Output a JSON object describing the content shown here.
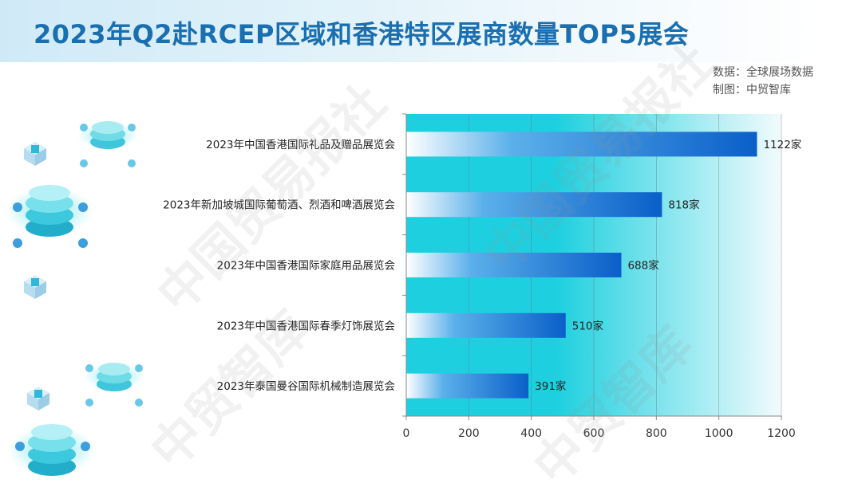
{
  "header": {
    "title": "2023年Q2赴RCEP区域和香港特区展商数量TOP5展会",
    "source_line1": "数据：全球展场数据",
    "source_line2": "制图：中贸智库"
  },
  "watermark": {
    "text1": "中国贸易报社",
    "text2": "中贸智库"
  },
  "chart_data": {
    "type": "bar",
    "orientation": "horizontal",
    "categories": [
      "2023年中国香港国际礼品及赠品展览会",
      "2023年新加坡城国际葡萄酒、烈酒和啤酒展览会",
      "2023年中国香港国际家庭用品展览会",
      "2023年中国香港国际春季灯饰展览会",
      "2023年泰国曼谷国际机械制造展览会"
    ],
    "values": [
      1122,
      818,
      688,
      510,
      391
    ],
    "data_labels": [
      "1122家",
      "818家",
      "688家",
      "510家",
      "391家"
    ],
    "xlim": [
      0,
      1200
    ],
    "xticks": [
      "0",
      "200",
      "400",
      "600",
      "800",
      "1000",
      "1200"
    ],
    "grid": true,
    "colors": {
      "bar_start": "#ffffff",
      "bar_end": "#0a5fc9",
      "plot_bg_start": "#1ed0df",
      "plot_bg_end": "#f2fbfd"
    }
  }
}
